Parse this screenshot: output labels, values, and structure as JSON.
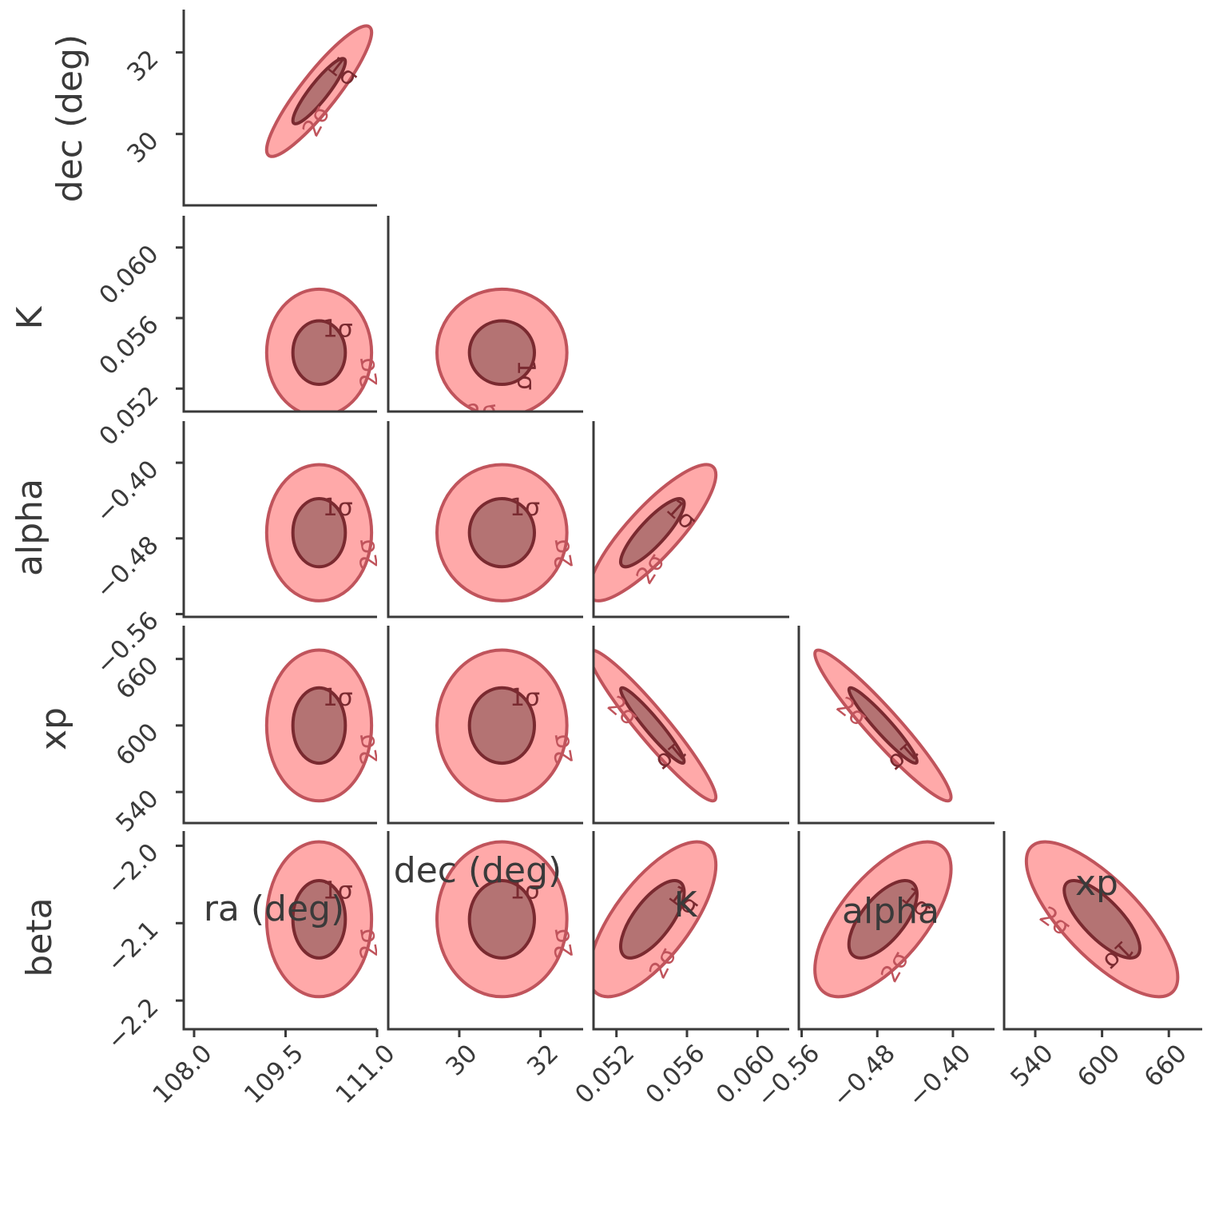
{
  "chart_data": {
    "type": "corner",
    "parameters": [
      {
        "label": "ra (deg)",
        "lim": [
          107.83,
          111.0
        ],
        "ticks": [
          {
            "value": 108,
            "label": "108.0"
          },
          109.5,
          {
            "value": 111,
            "label": "111.0"
          }
        ],
        "mean": 110.05,
        "std": 0.43
      },
      {
        "label": "dec (deg)",
        "lim": [
          28.25,
          33.05
        ],
        "ticks": [
          30,
          32
        ],
        "mean": 31.05,
        "std": 0.8
      },
      {
        "label": "K",
        "lim": [
          0.0507,
          0.0618
        ],
        "ticks": [
          0.052,
          0.056,
          {
            "value": 0.06,
            "label": "0.060"
          }
        ],
        "mean": 0.05404,
        "std": 0.0018
      },
      {
        "label": "alpha",
        "lim": [
          -0.563,
          -0.356
        ],
        "ticks": [
          {
            "value": -0.56,
            "label": "−0.56"
          },
          {
            "value": -0.48,
            "label": "−0.48"
          },
          {
            "value": -0.4,
            "label": "−0.40"
          }
        ],
        "mean": -0.474,
        "std": 0.036
      },
      {
        "label": "xp",
        "lim": [
          512,
          690
        ],
        "ticks": [
          540,
          600,
          660
        ],
        "mean": 600,
        "std": 34
      },
      {
        "label": "beta",
        "lim": [
          -2.237,
          -1.981
        ],
        "ticks": [
          {
            "value": -2.0,
            "label": "−2.0"
          },
          {
            "value": -2.1,
            "label": "−2.1"
          },
          {
            "value": -2.2,
            "label": "−2.2"
          }
        ],
        "mean": -2.095,
        "std": 0.05
      }
    ],
    "correlations": [
      [
        0.9
      ],
      [
        0.0,
        0.0
      ],
      [
        0.0,
        0.0,
        0.85
      ],
      [
        0.0,
        0.0,
        -0.95,
        -0.95
      ],
      [
        0.0,
        0.0,
        0.7,
        0.65,
        -0.75
      ]
    ],
    "contour_labels": [
      "1σ",
      "2σ"
    ],
    "color_1sigma": "#b07070",
    "edge_1sigma": "#7a2a30",
    "color_2sigma": "#ff9a9a",
    "edge_2sigma": "#c0545c",
    "grid": false
  }
}
